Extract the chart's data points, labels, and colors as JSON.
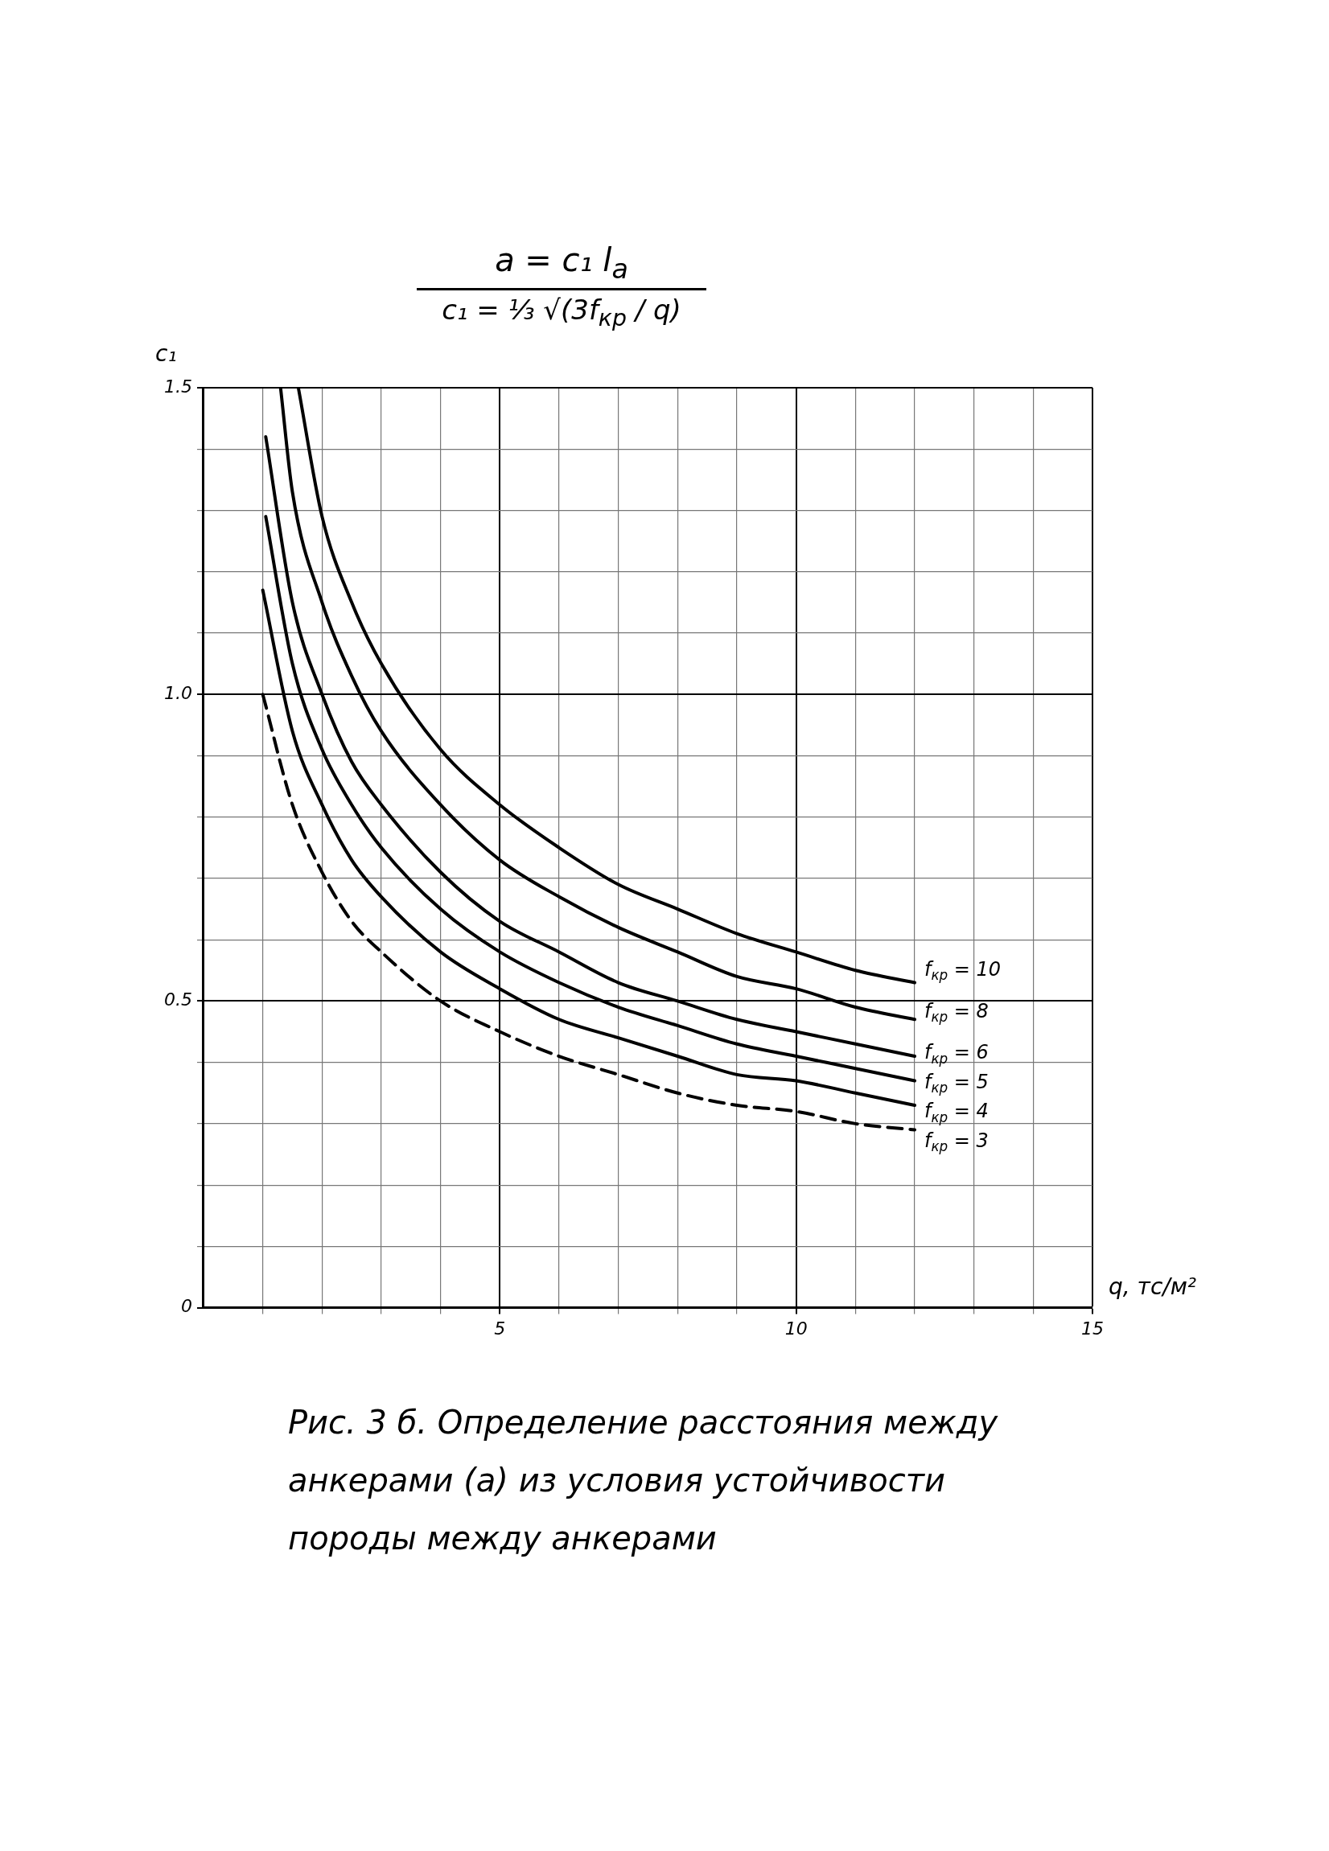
{
  "chart_data": {
    "type": "line",
    "title": "a = c₁ l$_{a}$",
    "subtitle": "c₁ = ⅓ √(3f$_{кр}$ / q)",
    "xlabel": "q, тс/м²",
    "ylabel": "c₁",
    "annotations": [
      "Рис. 3 б. Определение расстояния между анкерами (а) из условия устойчивости породы между анкерами"
    ],
    "xlim": [
      0,
      15
    ],
    "ylim": [
      0,
      1.5
    ],
    "xticks": [
      {
        "value": 1,
        "label": null
      },
      {
        "value": 2,
        "label": null
      },
      {
        "value": 3,
        "label": null
      },
      {
        "value": 4,
        "label": null
      },
      5,
      {
        "value": 6,
        "label": null
      },
      {
        "value": 7,
        "label": null
      },
      {
        "value": 8,
        "label": null
      },
      {
        "value": 9,
        "label": null
      },
      10,
      {
        "value": 11,
        "label": null
      },
      {
        "value": 12,
        "label": null
      },
      {
        "value": 13,
        "label": null
      },
      {
        "value": 14,
        "label": null
      },
      15
    ],
    "yticks": [
      0,
      {
        "value": 0.1,
        "label": null
      },
      {
        "value": 0.2,
        "label": null
      },
      {
        "value": 0.3,
        "label": null
      },
      {
        "value": 0.4,
        "label": null
      },
      0.5,
      {
        "value": 0.6,
        "label": null
      },
      {
        "value": 0.7,
        "label": null
      },
      {
        "value": 0.8,
        "label": null
      },
      {
        "value": 0.9,
        "label": null
      },
      {
        "value": 1,
        "label": "1.0"
      },
      {
        "value": 1.1,
        "label": null
      },
      {
        "value": 1.2,
        "label": null
      },
      {
        "value": 1.3,
        "label": null
      },
      {
        "value": 1.4,
        "label": null
      },
      1.5
    ],
    "grid": true,
    "legend": false,
    "marker": "none",
    "series": [
      {
        "name": "f$_{кр}$ = 10",
        "color": "#000000",
        "line_style": "solid",
        "x": [
          1.6,
          2,
          2.5,
          3,
          4,
          5,
          6,
          7,
          8,
          9,
          10,
          11,
          12
        ],
        "values": [
          1.5,
          1.29,
          1.15,
          1.05,
          0.91,
          0.82,
          0.75,
          0.69,
          0.65,
          0.61,
          0.58,
          0.55,
          0.53
        ]
      },
      {
        "name": "f$_{кр}$ = 8",
        "color": "#000000",
        "line_style": "solid",
        "x": [
          1.3,
          1.5,
          2,
          2.5,
          3,
          4,
          5,
          6,
          7,
          8,
          9,
          10,
          11,
          12
        ],
        "values": [
          1.5,
          1.33,
          1.15,
          1.03,
          0.94,
          0.82,
          0.73,
          0.67,
          0.62,
          0.58,
          0.54,
          0.52,
          0.49,
          0.47
        ]
      },
      {
        "name": "f$_{кр}$ = 6",
        "color": "#000000",
        "line_style": "solid",
        "x": [
          1.05,
          1.5,
          2,
          2.5,
          3,
          4,
          5,
          6,
          7,
          8,
          9,
          10,
          11,
          12
        ],
        "values": [
          1.42,
          1.15,
          1.0,
          0.89,
          0.82,
          0.71,
          0.63,
          0.58,
          0.53,
          0.5,
          0.47,
          0.45,
          0.43,
          0.41
        ]
      },
      {
        "name": "f$_{кр}$ = 5",
        "color": "#000000",
        "line_style": "solid",
        "x": [
          1.05,
          1.5,
          2,
          2.5,
          3,
          4,
          5,
          6,
          7,
          8,
          9,
          10,
          11,
          12
        ],
        "values": [
          1.29,
          1.05,
          0.91,
          0.82,
          0.75,
          0.65,
          0.58,
          0.53,
          0.49,
          0.46,
          0.43,
          0.41,
          0.39,
          0.37
        ]
      },
      {
        "name": "f$_{кр}$ = 4",
        "color": "#000000",
        "line_style": "solid",
        "x": [
          1,
          1.5,
          2,
          2.5,
          3,
          4,
          5,
          6,
          7,
          8,
          9,
          10,
          11,
          12
        ],
        "values": [
          1.17,
          0.94,
          0.82,
          0.73,
          0.67,
          0.58,
          0.52,
          0.47,
          0.44,
          0.41,
          0.38,
          0.37,
          0.35,
          0.33
        ]
      },
      {
        "name": "f$_{кр}$ = 3",
        "color": "#000000",
        "line_style": "dashed",
        "x": [
          1,
          1.5,
          2,
          2.5,
          3,
          4,
          5,
          6,
          7,
          8,
          9,
          10,
          11,
          12
        ],
        "values": [
          1.0,
          0.82,
          0.71,
          0.63,
          0.58,
          0.5,
          0.45,
          0.41,
          0.38,
          0.35,
          0.33,
          0.32,
          0.3,
          0.29
        ]
      }
    ]
  }
}
